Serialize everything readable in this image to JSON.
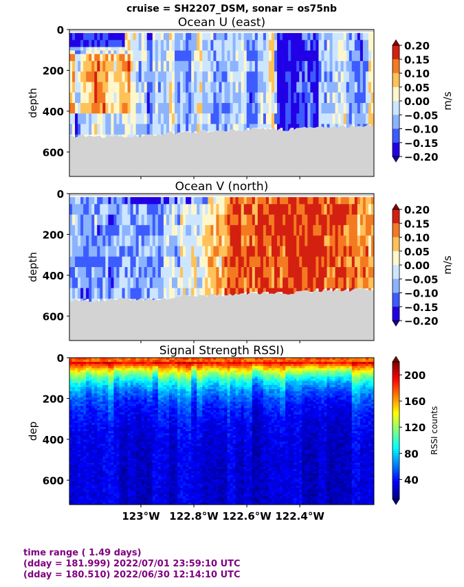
{
  "suptitle": "cruise = SH2207_DSM,  sonar = os75nb",
  "footer": {
    "line1": "time range ( 1.49 days)",
    "line2": "(dday = 181.999) 2022/07/01 23:59:10 UTC",
    "line3": "(dday = 180.510) 2022/06/30 12:14:10 UTC"
  },
  "colors": {
    "land": "#d3d3d3",
    "footer_text": "#800080"
  },
  "chart_data": [
    {
      "type": "heatmap",
      "title": "Ocean U (east)",
      "ylabel": "depth",
      "colorbar_label": "m/s",
      "colormap": "bwr-discrete",
      "xlim": [
        -123.27,
        -122.12
      ],
      "ylim": [
        720,
        0
      ],
      "x_ticks": [
        -123.0,
        -122.8,
        -122.6,
        -122.4
      ],
      "x_tick_labels": [
        "",
        "",
        "",
        ""
      ],
      "y_ticks": [
        0,
        200,
        400,
        600
      ],
      "y_tick_labels": [
        "0",
        "200",
        "400",
        "600"
      ],
      "clim": [
        -0.2,
        0.2
      ],
      "colorbar_ticks": [
        0.2,
        0.15,
        0.1,
        0.05,
        0.0,
        -0.05,
        -0.1,
        -0.15,
        -0.2
      ],
      "colorbar_tick_labels": [
        "0.20",
        "0.15",
        "0.10",
        "0.05",
        "0.00",
        "−0.05",
        "−0.10",
        "−0.15",
        "−0.20"
      ],
      "bottom_depth": {
        "x": [
          -123.27,
          -123.0,
          -122.8,
          -122.6,
          -122.45,
          -122.3,
          -122.12
        ],
        "depth": [
          525,
          520,
          500,
          490,
          490,
          475,
          470
        ]
      }
    },
    {
      "type": "heatmap",
      "title": "Ocean V (north)",
      "ylabel": "depth",
      "colorbar_label": "m/s",
      "colormap": "bwr-discrete",
      "xlim": [
        -123.27,
        -122.12
      ],
      "ylim": [
        720,
        0
      ],
      "x_ticks": [
        -123.0,
        -122.8,
        -122.6,
        -122.4
      ],
      "x_tick_labels": [
        "",
        "",
        "",
        ""
      ],
      "y_ticks": [
        0,
        200,
        400,
        600
      ],
      "y_tick_labels": [
        "0",
        "200",
        "400",
        "600"
      ],
      "clim": [
        -0.2,
        0.2
      ],
      "colorbar_ticks": [
        0.2,
        0.15,
        0.1,
        0.05,
        0.0,
        -0.05,
        -0.1,
        -0.15,
        -0.2
      ],
      "colorbar_tick_labels": [
        "0.20",
        "0.15",
        "0.10",
        "0.05",
        "0.00",
        "−0.05",
        "−0.10",
        "−0.15",
        "−0.20"
      ],
      "bottom_depth": {
        "x": [
          -123.27,
          -123.0,
          -122.8,
          -122.6,
          -122.45,
          -122.3,
          -122.12
        ],
        "depth": [
          525,
          520,
          500,
          490,
          490,
          475,
          470
        ]
      }
    },
    {
      "type": "heatmap",
      "title": "Signal Strength RSSI)",
      "ylabel": "dep",
      "colorbar_label": "RSSI counts",
      "colormap": "jet",
      "xlim": [
        -123.27,
        -122.12
      ],
      "ylim": [
        720,
        0
      ],
      "x_ticks": [
        -123.0,
        -122.8,
        -122.6,
        -122.4
      ],
      "x_tick_labels": [
        "123°W",
        "122.8°W",
        "122.6°W",
        "122.4°W"
      ],
      "y_ticks": [
        0,
        200,
        400,
        600
      ],
      "y_tick_labels": [
        "0",
        "200",
        "400",
        "600"
      ],
      "clim": [
        10,
        220
      ],
      "colorbar_ticks": [
        200,
        160,
        120,
        80,
        40
      ],
      "colorbar_tick_labels": [
        "200",
        "160",
        "120",
        "80",
        "40"
      ]
    }
  ]
}
